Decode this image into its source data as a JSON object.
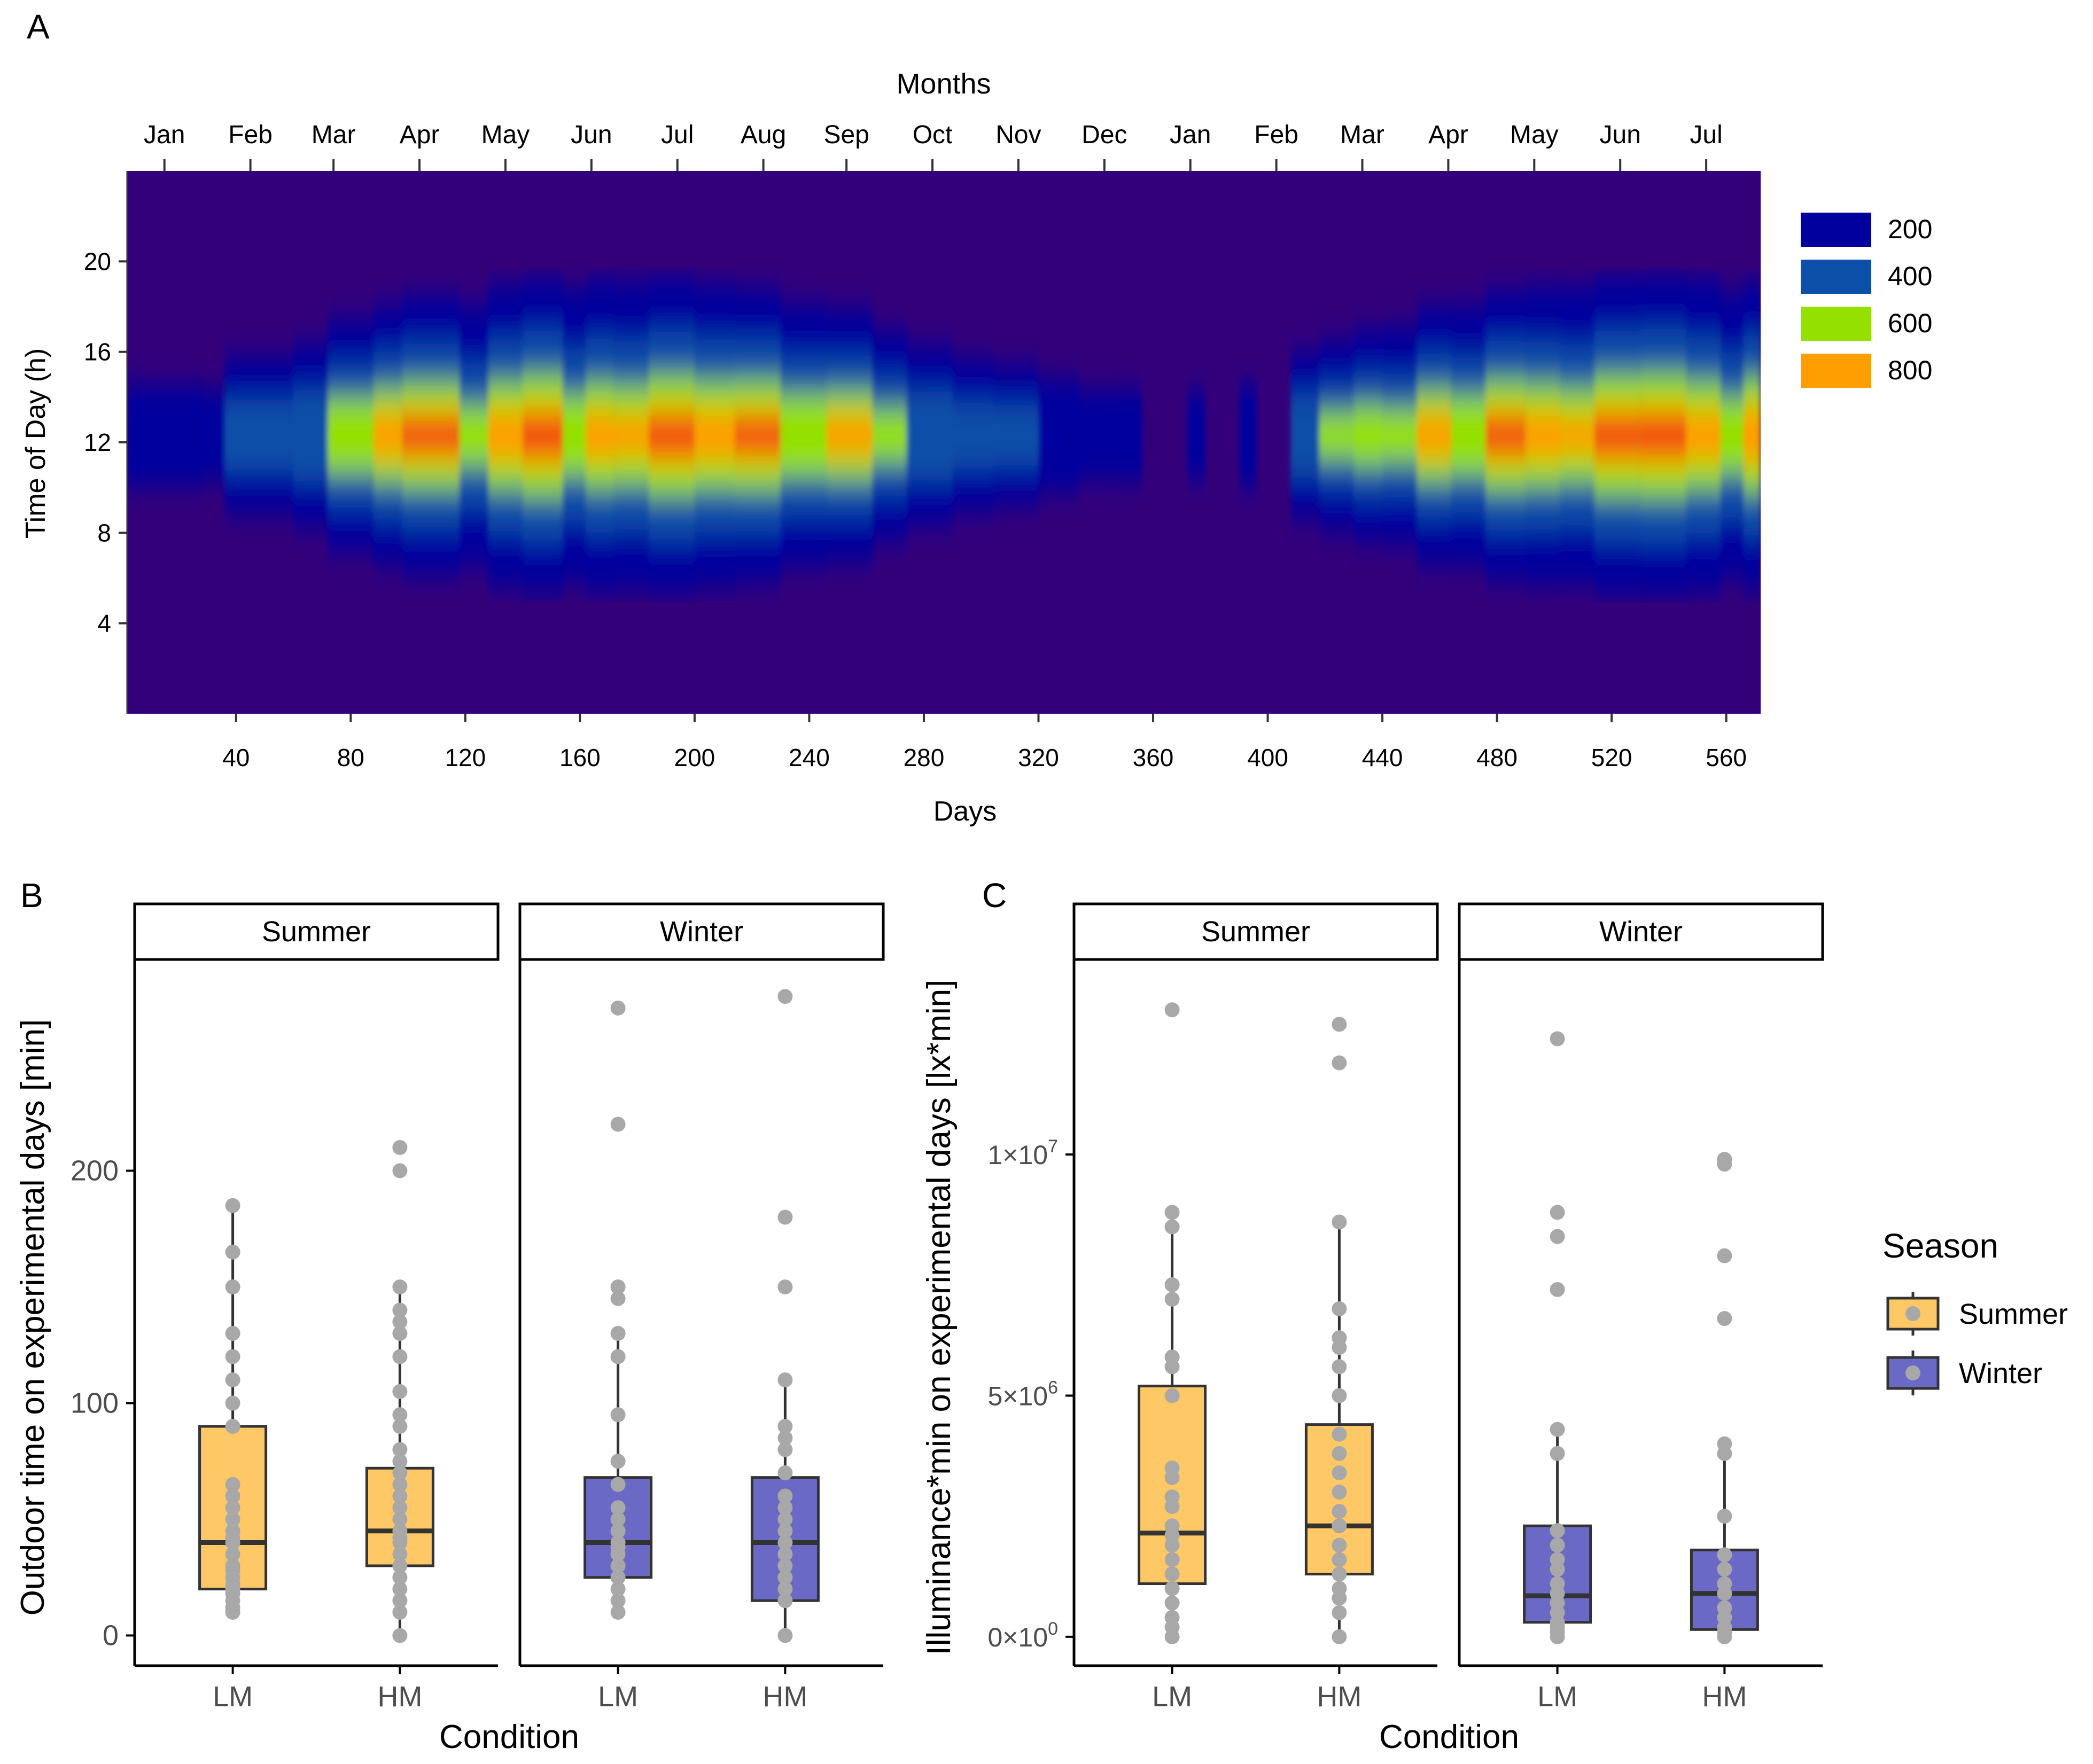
{
  "chart_data": [
    {
      "panel": "A",
      "type": "heatmap",
      "title": "Months",
      "xlabel": "Days",
      "ylabel": "Time of Day (h)",
      "x_ticks": [
        40,
        80,
        120,
        160,
        200,
        240,
        280,
        320,
        360,
        400,
        440,
        480,
        520,
        560
      ],
      "xlim": [
        2,
        572
      ],
      "y_ticks": [
        4,
        8,
        12,
        16,
        20
      ],
      "ylim": [
        0,
        24
      ],
      "top_axis_months": [
        "Jan",
        "Feb",
        "Mar",
        "Apr",
        "May",
        "Jun",
        "Jul",
        "Aug",
        "Sep",
        "Oct",
        "Nov",
        "Dec",
        "Jan",
        "Feb",
        "Mar",
        "Apr",
        "May",
        "Jun",
        "Jul"
      ],
      "top_axis_month_days": [
        15,
        45,
        74,
        104,
        134,
        164,
        194,
        224,
        253,
        283,
        313,
        343,
        373,
        403,
        433,
        463,
        493,
        523,
        553
      ],
      "legend": [
        "200",
        "400",
        "600",
        "800"
      ],
      "legend_values": [
        200,
        400,
        600,
        800
      ],
      "colors": {
        "background": "#34007a",
        "c200": "#00009e",
        "c400": "#0b4fa8",
        "c600": "#94e000",
        "c800": "#ff9e00",
        "peak": "#ee2a10"
      },
      "segments": [
        {
          "start": 2,
          "end": 28,
          "peak": 280
        },
        {
          "start": 28,
          "end": 36,
          "peak": 220
        },
        {
          "start": 36,
          "end": 60,
          "peak": 460
        },
        {
          "start": 60,
          "end": 72,
          "peak": 520
        },
        {
          "start": 72,
          "end": 88,
          "peak": 780
        },
        {
          "start": 88,
          "end": 98,
          "peak": 900
        },
        {
          "start": 98,
          "end": 118,
          "peak": 960
        },
        {
          "start": 118,
          "end": 128,
          "peak": 640
        },
        {
          "start": 128,
          "end": 140,
          "peak": 900
        },
        {
          "start": 140,
          "end": 154,
          "peak": 1000
        },
        {
          "start": 154,
          "end": 162,
          "peak": 720
        },
        {
          "start": 162,
          "end": 172,
          "peak": 860
        },
        {
          "start": 172,
          "end": 184,
          "peak": 820
        },
        {
          "start": 184,
          "end": 200,
          "peak": 980
        },
        {
          "start": 200,
          "end": 214,
          "peak": 900
        },
        {
          "start": 214,
          "end": 230,
          "peak": 950
        },
        {
          "start": 230,
          "end": 246,
          "peak": 780
        },
        {
          "start": 246,
          "end": 262,
          "peak": 860
        },
        {
          "start": 262,
          "end": 274,
          "peak": 640
        },
        {
          "start": 274,
          "end": 290,
          "peak": 520
        },
        {
          "start": 290,
          "end": 304,
          "peak": 440
        },
        {
          "start": 304,
          "end": 320,
          "peak": 430
        },
        {
          "start": 320,
          "end": 334,
          "peak": 330
        },
        {
          "start": 334,
          "end": 346,
          "peak": 240
        },
        {
          "start": 346,
          "end": 356,
          "peak": 250
        },
        {
          "start": 356,
          "end": 372,
          "peak": 120
        },
        {
          "start": 372,
          "end": 378,
          "peak": 230
        },
        {
          "start": 378,
          "end": 390,
          "peak": 120
        },
        {
          "start": 390,
          "end": 396,
          "peak": 260
        },
        {
          "start": 396,
          "end": 408,
          "peak": 130
        },
        {
          "start": 408,
          "end": 418,
          "peak": 520
        },
        {
          "start": 418,
          "end": 430,
          "peak": 620
        },
        {
          "start": 430,
          "end": 440,
          "peak": 700
        },
        {
          "start": 440,
          "end": 452,
          "peak": 640
        },
        {
          "start": 452,
          "end": 464,
          "peak": 880
        },
        {
          "start": 464,
          "end": 476,
          "peak": 760
        },
        {
          "start": 476,
          "end": 490,
          "peak": 960
        },
        {
          "start": 490,
          "end": 502,
          "peak": 880
        },
        {
          "start": 502,
          "end": 514,
          "peak": 800
        },
        {
          "start": 514,
          "end": 530,
          "peak": 980
        },
        {
          "start": 530,
          "end": 546,
          "peak": 1000
        },
        {
          "start": 546,
          "end": 558,
          "peak": 880
        },
        {
          "start": 558,
          "end": 566,
          "peak": 700
        },
        {
          "start": 566,
          "end": 572,
          "peak": 940
        }
      ]
    },
    {
      "panel": "B",
      "type": "box",
      "ylabel": "Outdoor time on experimental days [min]",
      "xlabel": "Condition",
      "facets": [
        "Summer",
        "Winter"
      ],
      "categories": [
        "LM",
        "HM"
      ],
      "y_ticks": [
        0,
        100,
        200
      ],
      "ylim": [
        -13,
        290
      ],
      "boxes": [
        {
          "season": "Summer",
          "condition": "LM",
          "q1": 20,
          "median": 40,
          "q3": 90,
          "lower": 10,
          "upper": 185,
          "points": [
            10,
            12,
            15,
            18,
            20,
            22,
            25,
            28,
            30,
            35,
            40,
            42,
            45,
            50,
            55,
            60,
            65,
            90,
            100,
            110,
            120,
            130,
            150,
            165,
            185
          ]
        },
        {
          "season": "Summer",
          "condition": "HM",
          "q1": 30,
          "median": 45,
          "q3": 72,
          "lower": 0,
          "upper": 150,
          "points": [
            0,
            10,
            15,
            20,
            25,
            30,
            35,
            40,
            42,
            45,
            50,
            55,
            60,
            65,
            70,
            75,
            80,
            90,
            95,
            105,
            120,
            130,
            135,
            140,
            150,
            200,
            210
          ]
        },
        {
          "season": "Winter",
          "condition": "LM",
          "q1": 25,
          "median": 40,
          "q3": 68,
          "lower": 10,
          "upper": 130,
          "points": [
            10,
            15,
            20,
            25,
            30,
            35,
            38,
            40,
            45,
            50,
            55,
            65,
            75,
            95,
            120,
            130,
            145,
            150,
            220,
            270
          ]
        },
        {
          "season": "Winter",
          "condition": "HM",
          "q1": 15,
          "median": 40,
          "q3": 68,
          "lower": 0,
          "upper": 110,
          "points": [
            0,
            15,
            20,
            25,
            30,
            35,
            40,
            45,
            50,
            55,
            60,
            70,
            80,
            85,
            90,
            110,
            150,
            180,
            275
          ]
        }
      ]
    },
    {
      "panel": "C",
      "type": "box",
      "ylabel": "Illuminance*min on experimental days [lx*min]",
      "xlabel": "Condition",
      "facets": [
        "Summer",
        "Winter"
      ],
      "categories": [
        "LM",
        "HM"
      ],
      "y_ticks": [
        0,
        5000000,
        10000000
      ],
      "y_tick_bases": [
        "0×10",
        "5×10",
        "1×10"
      ],
      "y_tick_exponents": [
        "0",
        "6",
        "7"
      ],
      "ylim": [
        -600000,
        14000000
      ],
      "boxes": [
        {
          "season": "Summer",
          "condition": "LM",
          "q1": 1100000,
          "median": 2150000,
          "q3": 5200000,
          "lower": 0,
          "upper": 8800000,
          "points": [
            0,
            200000,
            400000,
            700000,
            1000000,
            1300000,
            1600000,
            1900000,
            2100000,
            2300000,
            2700000,
            2900000,
            3300000,
            3500000,
            5000000,
            5600000,
            5800000,
            7000000,
            7300000,
            8500000,
            8800000,
            13000000
          ]
        },
        {
          "season": "Summer",
          "condition": "HM",
          "q1": 1300000,
          "median": 2300000,
          "q3": 4400000,
          "lower": 0,
          "upper": 8600000,
          "points": [
            0,
            500000,
            800000,
            1000000,
            1300000,
            1600000,
            1900000,
            2300000,
            2600000,
            3000000,
            3400000,
            3800000,
            4200000,
            5000000,
            5600000,
            6000000,
            6200000,
            6800000,
            8600000,
            11900000,
            12700000
          ]
        },
        {
          "season": "Winter",
          "condition": "LM",
          "q1": 300000,
          "median": 850000,
          "q3": 2300000,
          "lower": 0,
          "upper": 4300000,
          "points": [
            0,
            100000,
            200000,
            300000,
            500000,
            700000,
            900000,
            1100000,
            1400000,
            1600000,
            1900000,
            2200000,
            3800000,
            4300000,
            7200000,
            8300000,
            8800000,
            12400000
          ]
        },
        {
          "season": "Winter",
          "condition": "HM",
          "q1": 150000,
          "median": 900000,
          "q3": 1800000,
          "lower": 0,
          "upper": 4000000,
          "points": [
            0,
            100000,
            200000,
            400000,
            600000,
            900000,
            1100000,
            1400000,
            1700000,
            2500000,
            3800000,
            4000000,
            6600000,
            7900000,
            9800000,
            9900000
          ]
        }
      ]
    }
  ],
  "panel_labels": {
    "a": "A",
    "b": "B",
    "c": "C"
  },
  "legend": {
    "title": "Season",
    "items": [
      {
        "label": "Summer",
        "color": "#ffc866"
      },
      {
        "label": "Winter",
        "color": "#6a6ac6"
      }
    ]
  }
}
